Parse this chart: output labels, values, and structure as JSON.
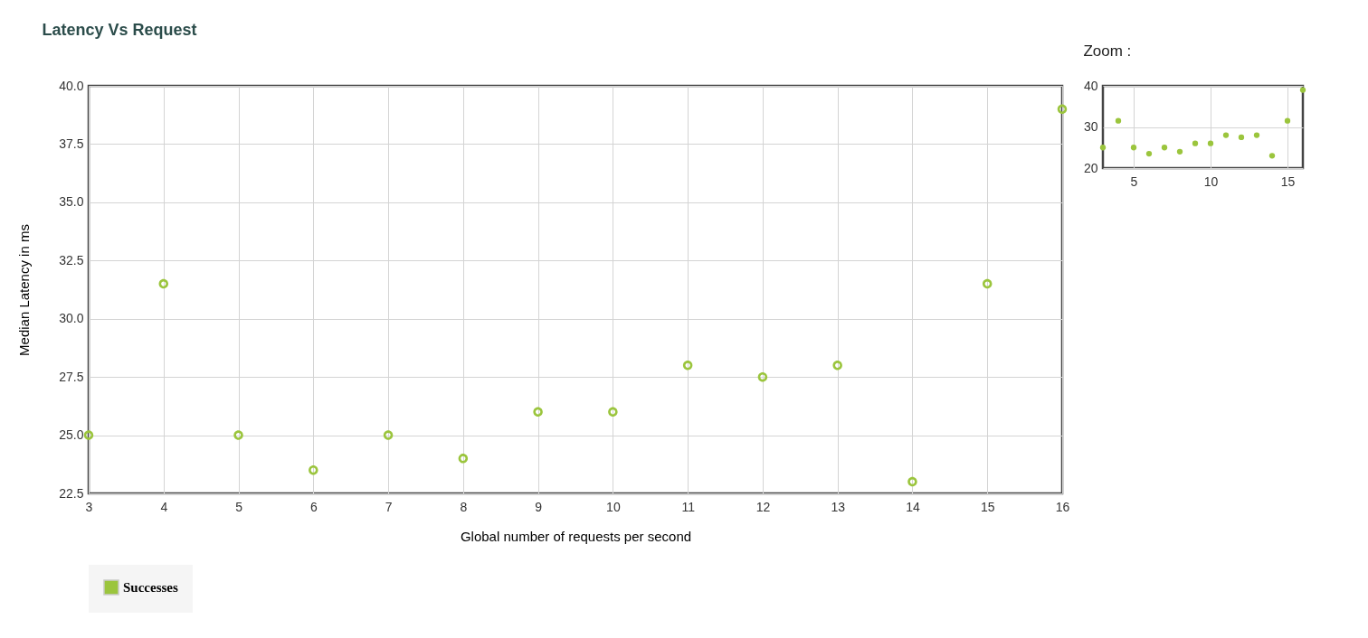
{
  "chart_data": [
    {
      "type": "scatter",
      "title": "Latency Vs Request",
      "xlabel": "Global number of requests per second",
      "ylabel": "Median Latency in ms",
      "x": [
        3,
        4,
        5,
        6,
        7,
        8,
        9,
        10,
        11,
        12,
        13,
        14,
        15,
        16
      ],
      "series": [
        {
          "name": "Successes",
          "color": "#9bc53d",
          "values": [
            25,
            31.5,
            25,
            23.5,
            25,
            24,
            26,
            26,
            28,
            27.5,
            28,
            23,
            31.5,
            39
          ]
        }
      ],
      "xlim": [
        3,
        16
      ],
      "ylim": [
        22.5,
        40
      ],
      "xticks": [
        3,
        4,
        5,
        6,
        7,
        8,
        9,
        10,
        11,
        12,
        13,
        14,
        15,
        16
      ],
      "yticks": [
        22.5,
        {
          "value": 25,
          "label": "25.0"
        },
        27.5,
        {
          "value": 30,
          "label": "30.0"
        },
        32.5,
        {
          "value": 35,
          "label": "35.0"
        },
        37.5,
        {
          "value": 40,
          "label": "40.0"
        }
      ],
      "grid": true,
      "legend": "bottom",
      "marker": "circle"
    },
    {
      "type": "scatter",
      "title": "Zoom :",
      "x": [
        3,
        4,
        5,
        6,
        7,
        8,
        9,
        10,
        11,
        12,
        13,
        14,
        15,
        16
      ],
      "series": [
        {
          "color": "#9bc53d",
          "values": [
            25,
            31.5,
            25,
            23.5,
            25,
            24,
            26,
            26,
            28,
            27.5,
            28,
            23,
            31.5,
            39
          ]
        }
      ],
      "xlim": [
        3,
        16
      ],
      "ylim": [
        20,
        40
      ],
      "xticks": [
        5,
        10,
        15
      ],
      "yticks": [
        20,
        30,
        40
      ],
      "grid": true,
      "marker": "circle"
    }
  ]
}
